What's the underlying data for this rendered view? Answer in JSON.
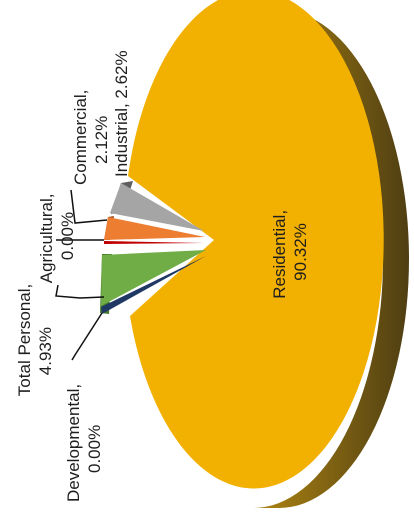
{
  "chart_data": {
    "type": "pie",
    "three_d": true,
    "orientation": "rotated 90 degrees counter-clockwise",
    "categories": [
      "Residential",
      "Developmental",
      "Total Personal",
      "Agricultural",
      "Commercial",
      "Industrial"
    ],
    "values": [
      90.32,
      0.0,
      4.93,
      0.0,
      2.12,
      2.62
    ],
    "colors": {
      "Residential": "#F2B000",
      "Residential_side": "#8A6A12",
      "Developmental": "#1F3864",
      "Total Personal": "#70AD47",
      "Agricultural": "#C00000",
      "Commercial": "#ED7D31",
      "Industrial": "#A5A5A5"
    },
    "labels": {
      "residential": [
        "Residential,",
        "90.32%"
      ],
      "industrial": "Industrial, 2.62%",
      "commercial": [
        "Commercial,",
        "2.12%"
      ],
      "agricultural": [
        "Agricultural,",
        "0.00%"
      ],
      "total_personal": [
        "Total Personal,",
        "4.93%"
      ],
      "developmental": [
        "Developmental,",
        "0.00%"
      ]
    }
  }
}
